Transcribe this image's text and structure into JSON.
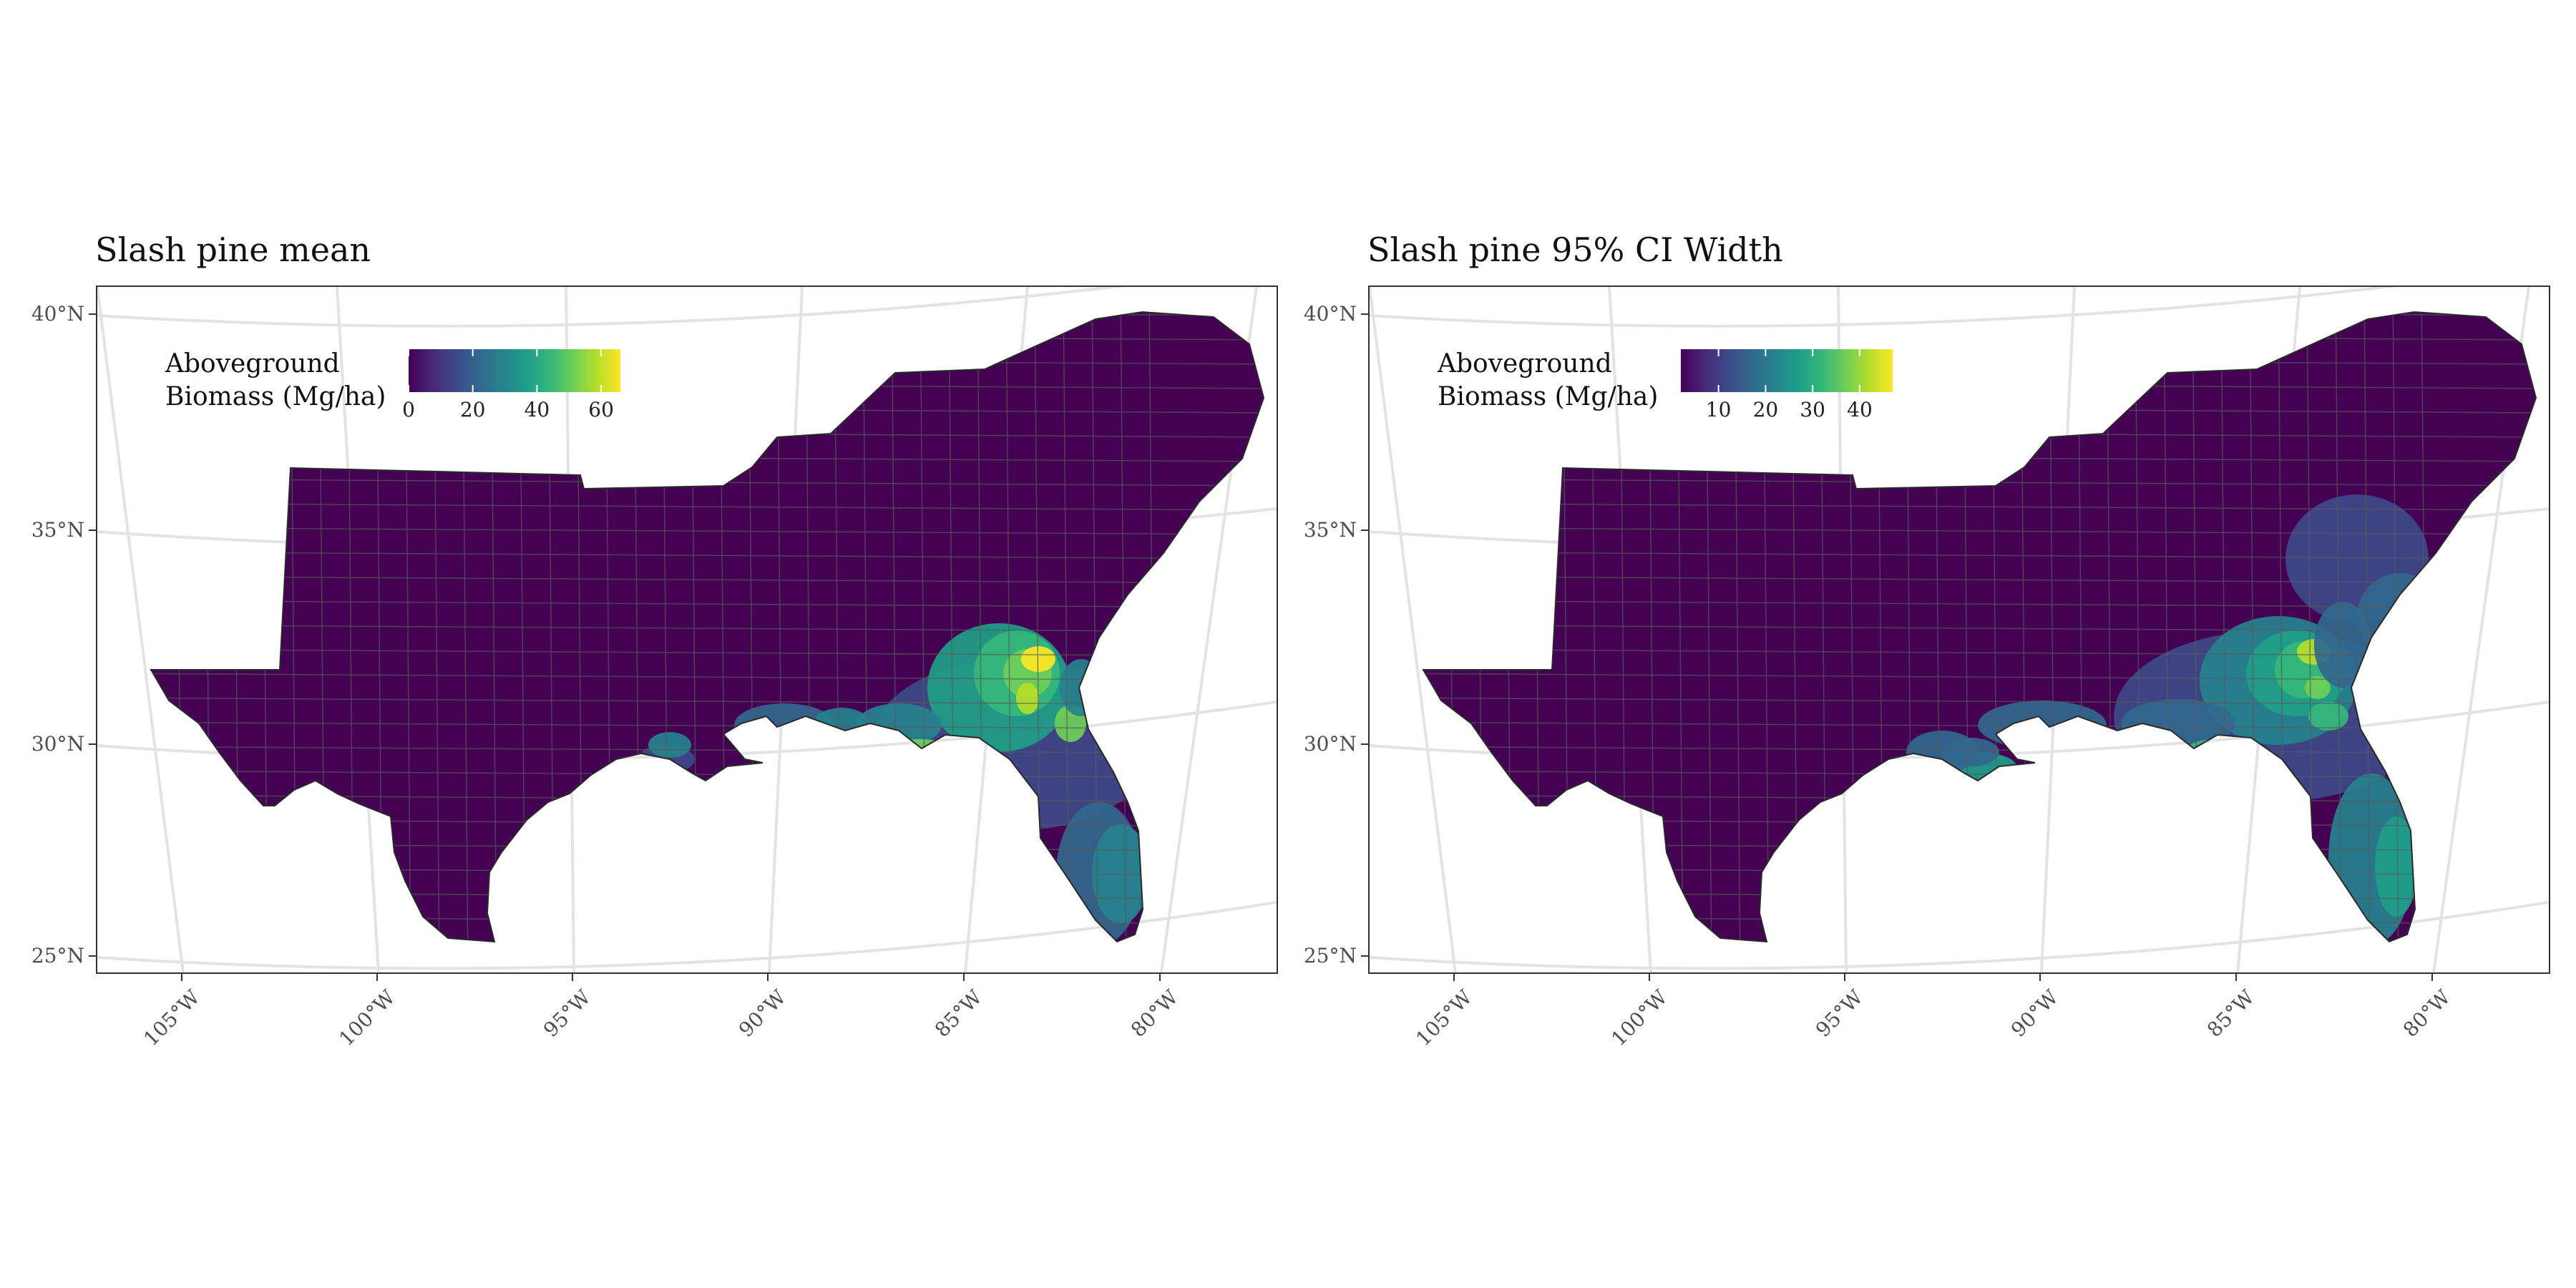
{
  "panels": [
    {
      "title": "Slash pine mean",
      "legend": {
        "title_line1": "Aboveground",
        "title_line2": "Biomass (Mg/ha)",
        "min": 0,
        "max": 66,
        "ticks": [
          "0",
          "20",
          "40",
          "60"
        ],
        "tick_values": [
          0,
          20,
          40,
          60
        ]
      }
    },
    {
      "title": "Slash pine 95% CI Width",
      "legend": {
        "title_line1": "Aboveground",
        "title_line2": "Biomass (Mg/ha)",
        "min": 2,
        "max": 47,
        "ticks": [
          "10",
          "20",
          "30",
          "40"
        ],
        "tick_values": [
          10,
          20,
          30,
          40
        ]
      }
    }
  ],
  "axes": {
    "lat_labels": [
      "40°N",
      "35°N",
      "30°N",
      "25°N"
    ],
    "lon_labels": [
      "105°W",
      "100°W",
      "95°W",
      "90°W",
      "85°W",
      "80°W"
    ]
  },
  "colors": {
    "viridis": [
      "#440154",
      "#482878",
      "#3e4989",
      "#31688e",
      "#26828e",
      "#1f9e89",
      "#35b779",
      "#6ece58",
      "#b5de2b",
      "#fde725"
    ],
    "background_region": "#440154",
    "county_border": "#5a5a5a",
    "graticule": "#e3e3e3"
  }
}
